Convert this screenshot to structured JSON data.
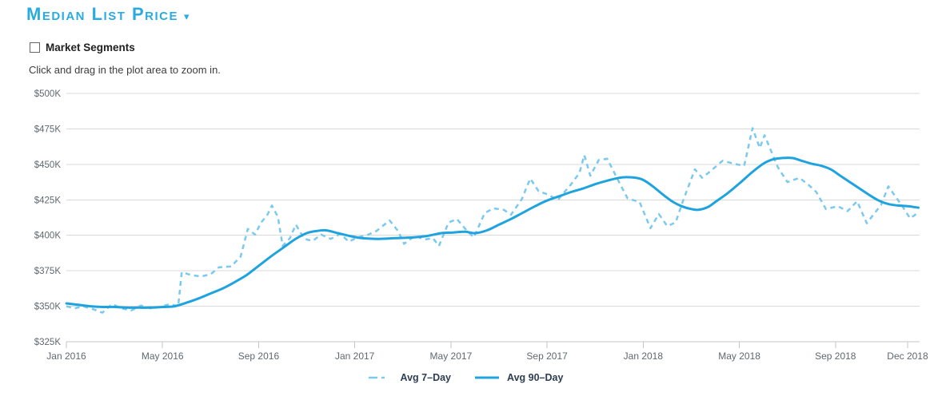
{
  "header": {
    "title": "Median List Price",
    "caret": "▾"
  },
  "controls": {
    "market_segments_label": "Market Segments",
    "market_segments_checked": false,
    "instruction": "Click and drag in the plot area to zoom in."
  },
  "legend": [
    {
      "label": "Avg 7–Day",
      "style": "dashed",
      "color": "#7cc9ef"
    },
    {
      "label": "Avg 90–Day",
      "style": "solid",
      "color": "#1fa3df"
    }
  ],
  "colors": {
    "accent_blue": "#29abe2",
    "avg7_line": "#7cc9ef",
    "avg90_line": "#1fa3df",
    "gridline": "#d9d9d9",
    "axis_line": "#c5c5c5",
    "tick_text": "#60686d",
    "legend_text": "#2d3e50"
  },
  "chart_data": {
    "type": "line",
    "title": "Median List Price",
    "x_unit": "months since Jan 2016 (fractional = intra-month)",
    "y_unit": "USD thousands",
    "xlim": [
      0,
      35.5
    ],
    "ylim": [
      325,
      500
    ],
    "grid": "horizontal only",
    "legend_position": "bottom center",
    "xticks": [
      {
        "m": 0,
        "label": "Jan 2016"
      },
      {
        "m": 4,
        "label": "May 2016"
      },
      {
        "m": 8,
        "label": "Sep 2016"
      },
      {
        "m": 12,
        "label": "Jan 2017"
      },
      {
        "m": 16,
        "label": "May 2017"
      },
      {
        "m": 20,
        "label": "Sep 2017"
      },
      {
        "m": 24,
        "label": "Jan 2018"
      },
      {
        "m": 28,
        "label": "May 2018"
      },
      {
        "m": 32,
        "label": "Sep 2018"
      },
      {
        "m": 35,
        "label": "Dec 2018"
      }
    ],
    "yticks": [
      {
        "v": 325,
        "label": "$325K"
      },
      {
        "v": 350,
        "label": "$350K"
      },
      {
        "v": 375,
        "label": "$375K"
      },
      {
        "v": 400,
        "label": "$400K"
      },
      {
        "v": 425,
        "label": "$425K"
      },
      {
        "v": 450,
        "label": "$450K"
      },
      {
        "v": 475,
        "label": "$475K"
      },
      {
        "v": 500,
        "label": "$500K"
      }
    ],
    "series": [
      {
        "name": "Avg 7–Day",
        "color": "#7cc9ef",
        "dash": true,
        "width": 2.5,
        "smooth": false,
        "points": [
          [
            0,
            350
          ],
          [
            0.35,
            348.5
          ],
          [
            0.7,
            350
          ],
          [
            1.1,
            348
          ],
          [
            1.5,
            345.5
          ],
          [
            1.9,
            351.5
          ],
          [
            2.3,
            348.5
          ],
          [
            2.7,
            347
          ],
          [
            3.1,
            350.5
          ],
          [
            3.5,
            348.5
          ],
          [
            3.9,
            349.5
          ],
          [
            4.3,
            351.5
          ],
          [
            4.65,
            350
          ],
          [
            4.8,
            374
          ],
          [
            5.2,
            372
          ],
          [
            5.6,
            371
          ],
          [
            6,
            372.5
          ],
          [
            6.35,
            377.5
          ],
          [
            6.85,
            378
          ],
          [
            7.25,
            385
          ],
          [
            7.55,
            404.5
          ],
          [
            7.85,
            400.5
          ],
          [
            8.1,
            409
          ],
          [
            8.35,
            414
          ],
          [
            8.55,
            421
          ],
          [
            8.8,
            413
          ],
          [
            9,
            392.5
          ],
          [
            9.3,
            398
          ],
          [
            9.55,
            407.5
          ],
          [
            9.9,
            397.5
          ],
          [
            10.25,
            396
          ],
          [
            10.6,
            400.5
          ],
          [
            11,
            397.5
          ],
          [
            11.4,
            401
          ],
          [
            11.75,
            395.5
          ],
          [
            12.1,
            398.5
          ],
          [
            12.5,
            400
          ],
          [
            12.9,
            403
          ],
          [
            13.45,
            410.5
          ],
          [
            13.8,
            403
          ],
          [
            14.05,
            394
          ],
          [
            14.5,
            399.5
          ],
          [
            14.9,
            397
          ],
          [
            15.25,
            398
          ],
          [
            15.5,
            392.5
          ],
          [
            15.9,
            409
          ],
          [
            16.25,
            411.5
          ],
          [
            16.6,
            404.5
          ],
          [
            16.95,
            398.5
          ],
          [
            17.4,
            415.5
          ],
          [
            17.75,
            419
          ],
          [
            18.2,
            418
          ],
          [
            18.5,
            414.5
          ],
          [
            18.95,
            425.5
          ],
          [
            19.3,
            440
          ],
          [
            19.65,
            431
          ],
          [
            20,
            429
          ],
          [
            20.45,
            425
          ],
          [
            21,
            436
          ],
          [
            21.35,
            444
          ],
          [
            21.55,
            456.5
          ],
          [
            21.8,
            442
          ],
          [
            22.15,
            453
          ],
          [
            22.5,
            454
          ],
          [
            22.95,
            439
          ],
          [
            23.35,
            426
          ],
          [
            23.85,
            423.5
          ],
          [
            24.3,
            405
          ],
          [
            24.65,
            415
          ],
          [
            25,
            406.5
          ],
          [
            25.35,
            409
          ],
          [
            25.65,
            424
          ],
          [
            26.15,
            446.5
          ],
          [
            26.45,
            440.5
          ],
          [
            26.75,
            444.5
          ],
          [
            27.3,
            452.5
          ],
          [
            27.9,
            450
          ],
          [
            28.2,
            449
          ],
          [
            28.55,
            475.5
          ],
          [
            28.85,
            461.5
          ],
          [
            29.05,
            470.5
          ],
          [
            29.6,
            448
          ],
          [
            30,
            437.5
          ],
          [
            30.5,
            440.5
          ],
          [
            30.85,
            436
          ],
          [
            31.2,
            430.5
          ],
          [
            31.6,
            418.5
          ],
          [
            32.1,
            420.5
          ],
          [
            32.5,
            417
          ],
          [
            32.9,
            424
          ],
          [
            33.3,
            408.5
          ],
          [
            33.9,
            421.5
          ],
          [
            34.2,
            434.5
          ],
          [
            34.8,
            420
          ],
          [
            35.1,
            412
          ],
          [
            35.45,
            416
          ]
        ]
      },
      {
        "name": "Avg 90–Day",
        "color": "#1fa3df",
        "dash": false,
        "width": 3,
        "smooth": true,
        "points": [
          [
            0,
            352
          ],
          [
            0.5,
            351
          ],
          [
            1,
            350
          ],
          [
            1.5,
            349.5
          ],
          [
            2,
            349.5
          ],
          [
            2.5,
            349
          ],
          [
            3,
            349
          ],
          [
            3.5,
            349
          ],
          [
            4,
            349.5
          ],
          [
            4.5,
            350
          ],
          [
            5,
            352.5
          ],
          [
            5.5,
            355.5
          ],
          [
            6,
            359
          ],
          [
            6.5,
            362.5
          ],
          [
            7,
            367
          ],
          [
            7.5,
            372
          ],
          [
            8,
            378.5
          ],
          [
            8.5,
            385
          ],
          [
            9,
            391
          ],
          [
            9.5,
            397
          ],
          [
            10,
            401.5
          ],
          [
            10.4,
            403
          ],
          [
            10.8,
            403.5
          ],
          [
            11.3,
            401.5
          ],
          [
            11.8,
            399.5
          ],
          [
            12.3,
            398
          ],
          [
            13,
            397.5
          ],
          [
            13.7,
            398
          ],
          [
            14.4,
            398.5
          ],
          [
            15,
            399.5
          ],
          [
            15.6,
            401.5
          ],
          [
            16.1,
            402
          ],
          [
            16.6,
            402.5
          ],
          [
            17,
            401.5
          ],
          [
            17.5,
            403.5
          ],
          [
            18,
            407.5
          ],
          [
            18.5,
            411.5
          ],
          [
            19,
            416
          ],
          [
            19.5,
            420.5
          ],
          [
            20,
            424.5
          ],
          [
            20.5,
            427.5
          ],
          [
            21,
            430.5
          ],
          [
            21.5,
            433
          ],
          [
            22,
            436
          ],
          [
            22.5,
            438.5
          ],
          [
            23,
            440.5
          ],
          [
            23.3,
            441
          ],
          [
            23.7,
            440.5
          ],
          [
            24,
            439
          ],
          [
            24.4,
            434.5
          ],
          [
            24.8,
            429
          ],
          [
            25.2,
            424
          ],
          [
            25.6,
            420.5
          ],
          [
            26,
            418.5
          ],
          [
            26.3,
            418
          ],
          [
            26.7,
            420
          ],
          [
            27,
            423.5
          ],
          [
            27.5,
            429.5
          ],
          [
            28,
            436.5
          ],
          [
            28.5,
            444
          ],
          [
            29,
            450.5
          ],
          [
            29.4,
            453.5
          ],
          [
            29.8,
            454.5
          ],
          [
            30.2,
            454.5
          ],
          [
            30.6,
            452.5
          ],
          [
            31,
            450.5
          ],
          [
            31.4,
            449
          ],
          [
            31.8,
            446.5
          ],
          [
            32.2,
            442
          ],
          [
            32.6,
            437.5
          ],
          [
            33,
            433
          ],
          [
            33.4,
            428.5
          ],
          [
            33.8,
            424.5
          ],
          [
            34.2,
            422
          ],
          [
            34.6,
            421
          ],
          [
            35,
            420.5
          ],
          [
            35.45,
            419.5
          ]
        ]
      }
    ]
  }
}
